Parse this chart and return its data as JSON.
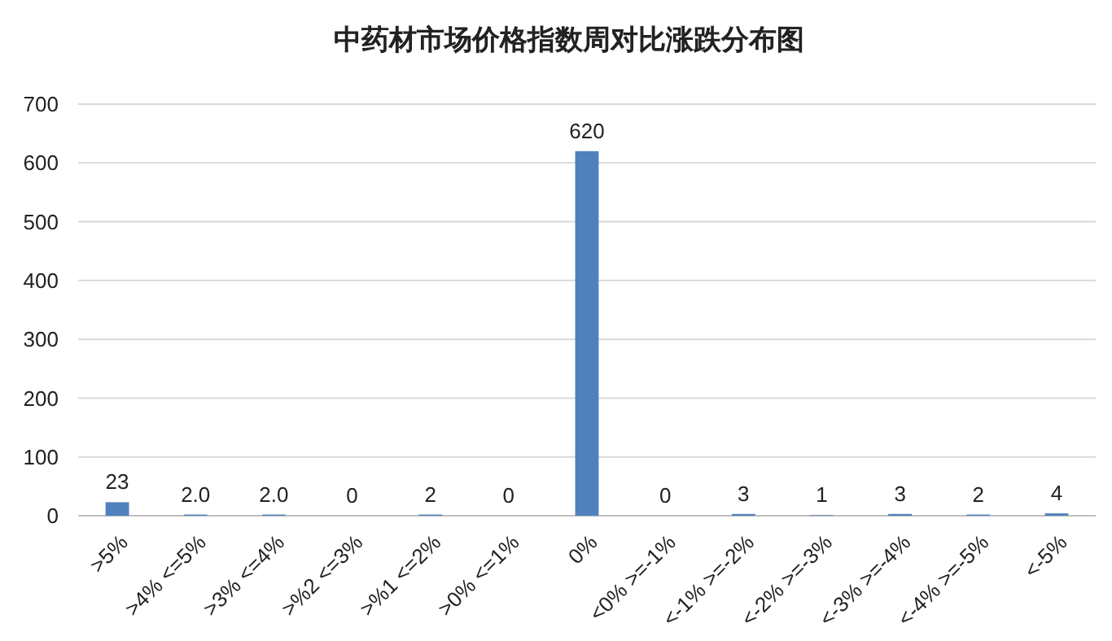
{
  "chart_data": {
    "type": "bar",
    "title": "中药材市场价格指数周对比涨跌分布图",
    "categories": [
      ">5%",
      ">4% <=5%",
      ">3% <=4%",
      ">%2 <=3%",
      ">%1 <=2%",
      ">0% <=1%",
      "0%",
      "<0% >=-1%",
      "<-1% >=-2%",
      "<-2% >=-3%",
      "<-3% >=-4%",
      "<-4% >=-5%",
      "<-5%"
    ],
    "values": [
      23,
      2,
      2,
      0,
      2,
      0,
      620,
      0,
      3,
      1,
      3,
      2,
      4
    ],
    "value_labels": [
      "23",
      "2.0",
      "2.0",
      "0",
      "2",
      "0",
      "620",
      "0",
      "3",
      "1",
      "3",
      "2",
      "4"
    ],
    "color": "#4f81bd",
    "ylim": [
      0,
      700
    ],
    "yticks": [
      0,
      100,
      200,
      300,
      400,
      500,
      600,
      700
    ],
    "grid": "y"
  }
}
